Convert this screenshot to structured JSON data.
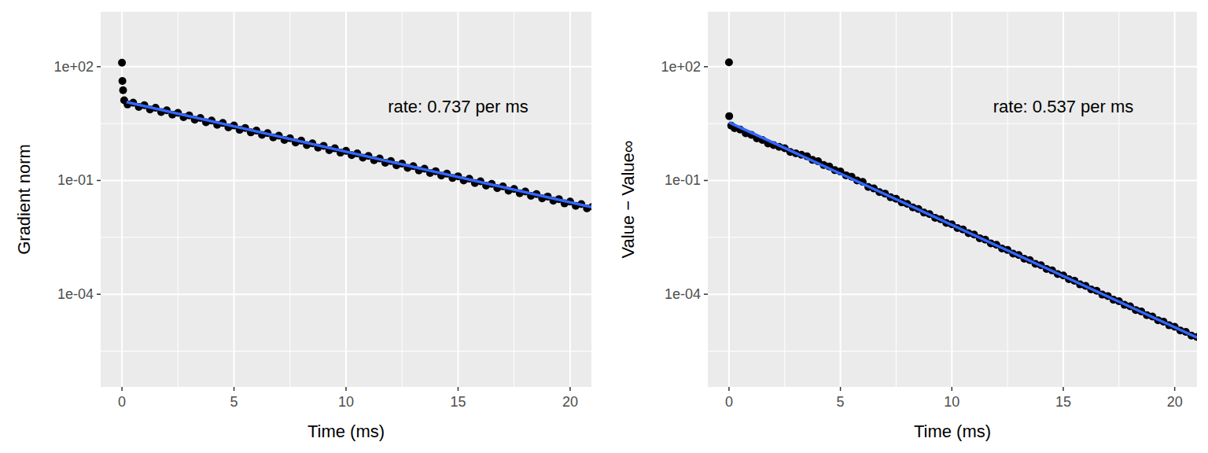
{
  "chart_data": [
    {
      "type": "scatter",
      "log": "y",
      "grid": true,
      "x_label": "Time (ms)",
      "y_label": "Gradient norm",
      "xlim": [
        -0.95,
        20.95
      ],
      "ylim": [
        2800,
        3.6e-07
      ],
      "xticks": [
        0,
        5,
        10,
        15,
        20
      ],
      "yticks": [
        {
          "value": 100,
          "label": "1e+02"
        },
        {
          "value": 0.1,
          "label": "1e-01"
        },
        {
          "value": 0.0001,
          "label": "1e-04"
        }
      ],
      "annotations": [
        {
          "text": "rate: 0.737 per ms",
          "x": 15,
          "y": 9.2
        }
      ],
      "series": [
        {
          "type": "scatter",
          "color": "#000000",
          "marker": "circle",
          "x": [
            0,
            0.02,
            0.05,
            0.1,
            0.25,
            0.5,
            0.75,
            1,
            1.25,
            1.5,
            1.75,
            2,
            2.25,
            2.5,
            2.75,
            3,
            3.25,
            3.5,
            3.75,
            4,
            4.25,
            4.5,
            4.75,
            5,
            5.25,
            5.5,
            5.75,
            6,
            6.25,
            6.5,
            6.75,
            7,
            7.25,
            7.5,
            7.75,
            8,
            8.25,
            8.5,
            8.75,
            9,
            9.25,
            9.5,
            9.75,
            10,
            10.25,
            10.5,
            10.75,
            11,
            11.25,
            11.5,
            11.75,
            12,
            12.25,
            12.5,
            12.75,
            13,
            13.25,
            13.5,
            13.75,
            14,
            14.25,
            14.5,
            14.75,
            15,
            15.25,
            15.5,
            15.75,
            16,
            16.25,
            16.5,
            16.75,
            17,
            17.25,
            17.5,
            17.75,
            18,
            18.25,
            18.5,
            18.75,
            19,
            19.25,
            19.5,
            19.75,
            20,
            20.25,
            20.5,
            20.75,
            21
          ],
          "values": [
            127,
            42,
            24,
            13,
            10.08,
            11.22,
            8.64,
            9.62,
            7.41,
            8.25,
            6.35,
            7.07,
            5.45,
            6.07,
            4.67,
            5.2,
            4.0,
            4.46,
            3.43,
            3.82,
            2.94,
            3.28,
            2.52,
            2.81,
            2.16,
            2.41,
            1.85,
            2.06,
            1.59,
            1.77,
            1.36,
            1.52,
            1.17,
            1.3,
            1.0,
            1.12,
            0.859,
            0.956,
            0.736,
            0.82,
            0.631,
            0.703,
            0.541,
            0.603,
            0.464,
            0.516,
            0.398,
            0.443,
            0.341,
            0.38,
            0.292,
            0.326,
            0.251,
            0.279,
            0.215,
            0.239,
            0.184,
            0.205,
            0.158,
            0.176,
            0.135,
            0.151,
            0.116,
            0.129,
            0.0996,
            0.111,
            0.0853,
            0.095,
            0.0732,
            0.0814,
            0.0627,
            0.0698,
            0.0538,
            0.0599,
            0.0461,
            0.0513,
            0.0395,
            0.044,
            0.0339,
            0.0377,
            0.0291,
            0.0323,
            0.0249,
            0.0277,
            0.0214,
            0.0238,
            0.0183,
            0.0204
          ]
        },
        {
          "type": "line",
          "color": "#3366FF",
          "line_style": "solid",
          "x": [
            0.2,
            20.95
          ],
          "values": [
            11.7,
            0.0198
          ]
        }
      ]
    },
    {
      "type": "scatter",
      "log": "y",
      "grid": true,
      "x_label": "Time (ms)",
      "y_label": "Value − Value∞",
      "xlim": [
        -0.95,
        21.0
      ],
      "ylim": [
        2800,
        3.6e-07
      ],
      "xticks": [
        0,
        5,
        10,
        15,
        20
      ],
      "yticks": [
        {
          "value": 100,
          "label": "1e+02"
        },
        {
          "value": 0.1,
          "label": "1e-01"
        },
        {
          "value": 0.0001,
          "label": "1e-04"
        }
      ],
      "annotations": [
        {
          "text": "rate: 0.537 per ms",
          "x": 15,
          "y": 9.2
        }
      ],
      "series": [
        {
          "type": "scatter",
          "color": "#000000",
          "marker": "circle",
          "x": [
            0,
            0.01,
            0.1,
            0.25,
            0.5,
            0.75,
            1,
            1.25,
            1.5,
            1.75,
            2,
            2.25,
            2.5,
            2.75,
            3,
            3.25,
            3.5,
            3.75,
            4,
            4.25,
            4.5,
            4.75,
            5,
            5.25,
            5.5,
            5.75,
            6,
            6.25,
            6.5,
            6.75,
            7,
            7.25,
            7.5,
            7.75,
            8,
            8.25,
            8.5,
            8.75,
            9,
            9.25,
            9.5,
            9.75,
            10,
            10.25,
            10.5,
            10.75,
            11,
            11.25,
            11.5,
            11.75,
            12,
            12.25,
            12.5,
            12.75,
            13,
            13.25,
            13.5,
            13.75,
            14,
            14.25,
            14.5,
            14.75,
            15,
            15.25,
            15.5,
            15.75,
            16,
            16.25,
            16.5,
            16.75,
            17,
            17.25,
            17.5,
            17.75,
            18,
            18.25,
            18.5,
            18.75,
            19,
            19.25,
            19.5,
            19.75,
            20,
            20.25,
            20.5,
            20.75,
            21
          ],
          "values": [
            130,
            4.97,
            2.8,
            2.39,
            2.19,
            1.75,
            1.6,
            1.28,
            1.17,
            0.938,
            0.861,
            0.771,
            0.708,
            0.565,
            0.519,
            0.476,
            0.436,
            0.348,
            0.32,
            0.255,
            0.234,
            0.187,
            0.172,
            0.137,
            0.126,
            0.1,
            0.0921,
            0.0671,
            0.0616,
            0.0492,
            0.0451,
            0.036,
            0.033,
            0.0264,
            0.0242,
            0.0194,
            0.0177,
            0.0142,
            0.013,
            0.0104,
            0.00953,
            0.00761,
            0.00698,
            0.00558,
            0.00512,
            0.00409,
            0.00375,
            0.003,
            0.00275,
            0.00219,
            0.00201,
            0.00161,
            0.00147,
            0.00118,
            0.00108,
            0.000863,
            0.000792,
            0.000633,
            0.00058,
            0.000464,
            0.000425,
            0.00034,
            0.000312,
            0.000249,
            0.000228,
            0.000182,
            0.000167,
            0.000134,
            0.000123,
            9.79e-05,
            8.98e-05,
            7.18e-05,
            6.58e-05,
            5.26e-05,
            4.82e-05,
            3.85e-05,
            3.53e-05,
            2.82e-05,
            2.59e-05,
            2.07e-05,
            1.9e-05,
            1.52e-05,
            1.39e-05,
            1.11e-05,
            1.02e-05,
            8.14e-06,
            7.46e-06
          ]
        },
        {
          "type": "line",
          "color": "#3366FF",
          "line_style": "solid",
          "x": [
            0,
            21
          ],
          "values": [
            3.39,
            7.2e-06
          ]
        }
      ]
    }
  ]
}
